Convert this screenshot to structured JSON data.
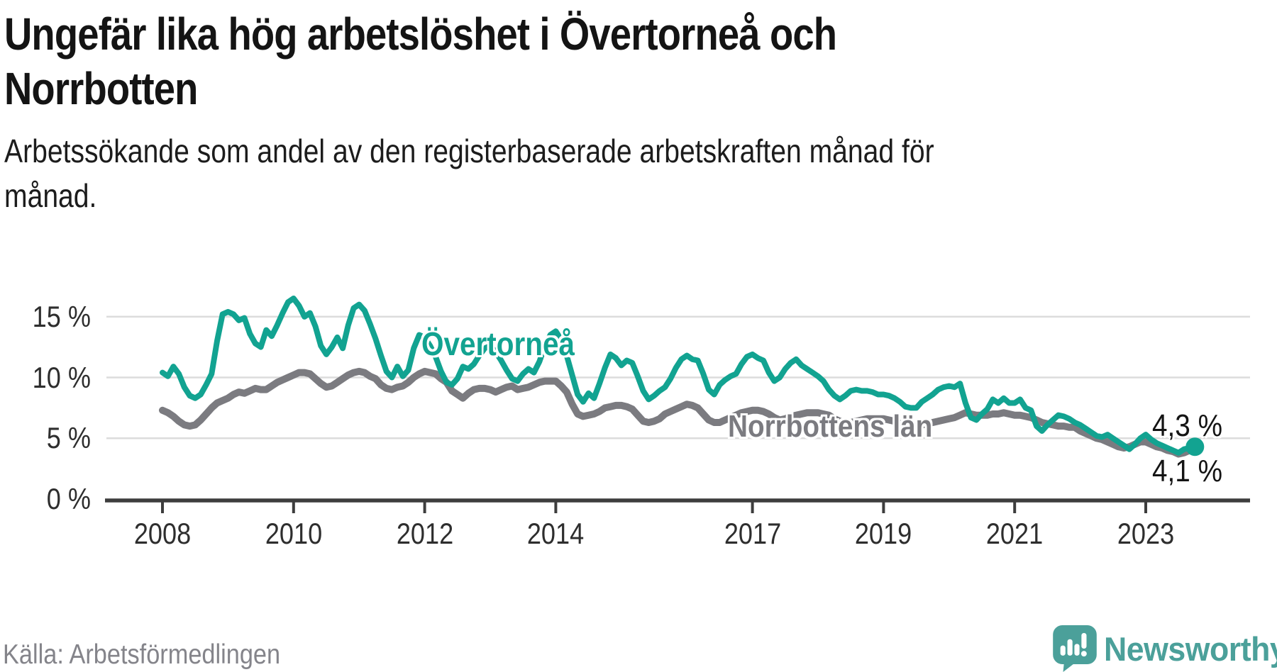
{
  "header": {
    "title": "Ungefär lika hög arbetslöshet i Övertorneå och Norrbotten",
    "subtitle": "Arbetssökande som andel av den registerbaserade arbetskraften månad för månad."
  },
  "footer": {
    "source": "Källa: Arbetsförmedlingen",
    "brand": "Newsworthy",
    "brand_icon": "bar-chart-speech-bubble-icon"
  },
  "colors": {
    "overtornea": "#12a391",
    "norrbotten": "#7b7b80",
    "grid": "#dcdcdc",
    "axis": "#3d3d3d",
    "tick_text": "#2e2e2e",
    "end_label_text": "#141414",
    "brand": "#4ba09a"
  },
  "chart_data": {
    "type": "line",
    "title": "Ungefär lika hög arbetslöshet i Övertorneå och Norrbotten",
    "xlabel": "",
    "ylabel": "Arbetssökande som andel av den registerbaserade arbetskraften",
    "x_unit": "month",
    "x_start_year": 2008,
    "x_end": "2023-10",
    "ylim": [
      0,
      17.5
    ],
    "grid": "horizontal",
    "legend_position": "inline-labels",
    "x_tick_labels": [
      "2008",
      "2010",
      "2012",
      "2014",
      "2017",
      "2019",
      "2021",
      "2023"
    ],
    "x_tick_years": [
      2008,
      2010,
      2012,
      2014,
      2017,
      2019,
      2021,
      2023
    ],
    "y_ticks": [
      {
        "value": 0,
        "label": "0 %"
      },
      {
        "value": 5,
        "label": "5 %"
      },
      {
        "value": 10,
        "label": "10 %"
      },
      {
        "value": 15,
        "label": "15 %"
      }
    ],
    "series": [
      {
        "name": "Övertorneå",
        "end_label": "4,3 %",
        "end_marker": true,
        "values": [
          10.4,
          10.1,
          10.9,
          10.3,
          9.2,
          8.5,
          8.3,
          8.6,
          9.4,
          10.3,
          13.0,
          15.2,
          15.4,
          15.2,
          14.7,
          14.9,
          13.6,
          12.8,
          12.5,
          13.9,
          13.4,
          14.3,
          15.3,
          16.2,
          16.5,
          15.9,
          15.0,
          15.3,
          14.2,
          12.6,
          11.9,
          12.5,
          13.3,
          12.4,
          14.3,
          15.7,
          16.0,
          15.5,
          14.4,
          13.2,
          11.8,
          10.5,
          10.0,
          10.9,
          10.1,
          10.6,
          12.4,
          13.5,
          13.3,
          12.6,
          11.7,
          10.5,
          9.6,
          9.4,
          9.9,
          10.9,
          10.7,
          11.1,
          11.8,
          12.4,
          12.6,
          12.1,
          11.4,
          10.6,
          9.9,
          9.7,
          10.3,
          10.7,
          10.4,
          11.3,
          12.6,
          13.5,
          13.8,
          13.1,
          11.8,
          10.2,
          8.6,
          8.0,
          8.7,
          8.3,
          9.5,
          10.8,
          11.9,
          11.6,
          11.0,
          11.4,
          11.2,
          10.1,
          8.9,
          8.2,
          8.5,
          8.9,
          9.2,
          9.9,
          10.8,
          11.5,
          11.8,
          11.5,
          11.4,
          10.3,
          9.0,
          8.6,
          9.4,
          9.8,
          10.1,
          10.3,
          11.1,
          11.7,
          11.9,
          11.6,
          11.4,
          10.4,
          9.7,
          10.0,
          10.7,
          11.2,
          11.5,
          11.0,
          10.7,
          10.4,
          10.1,
          9.7,
          9.0,
          8.5,
          8.2,
          8.5,
          8.9,
          9.0,
          8.9,
          8.9,
          8.8,
          8.6,
          8.6,
          8.5,
          8.3,
          8.0,
          7.6,
          7.5,
          7.5,
          8.0,
          8.3,
          8.6,
          9.0,
          9.2,
          9.3,
          9.2,
          9.5,
          7.9,
          6.7,
          6.5,
          7.0,
          7.4,
          8.2,
          7.9,
          8.3,
          7.9,
          7.9,
          8.2,
          7.5,
          7.3,
          6.0,
          5.6,
          6.1,
          6.5,
          6.9,
          6.8,
          6.6,
          6.3,
          6.1,
          5.8,
          5.5,
          5.2,
          5.1,
          5.3,
          5.0,
          4.7,
          4.4,
          4.1,
          4.5,
          5.0,
          5.3,
          4.9,
          4.6,
          4.4,
          4.2,
          4.0,
          3.8,
          4.1,
          4.2,
          4.3
        ]
      },
      {
        "name": "Norrbottens län",
        "end_label": "4,1 %",
        "end_marker": false,
        "values": [
          7.3,
          7.1,
          6.8,
          6.4,
          6.1,
          6.0,
          6.1,
          6.5,
          7.0,
          7.5,
          7.9,
          8.1,
          8.3,
          8.6,
          8.8,
          8.7,
          8.9,
          9.1,
          9.0,
          9.0,
          9.3,
          9.6,
          9.8,
          10.0,
          10.2,
          10.4,
          10.4,
          10.3,
          9.9,
          9.5,
          9.2,
          9.3,
          9.6,
          9.9,
          10.2,
          10.4,
          10.5,
          10.4,
          10.1,
          9.9,
          9.4,
          9.1,
          9.0,
          9.2,
          9.3,
          9.6,
          10.0,
          10.3,
          10.5,
          10.4,
          10.3,
          9.9,
          9.6,
          8.9,
          8.6,
          8.3,
          8.7,
          9.0,
          9.1,
          9.1,
          9.0,
          8.8,
          9.0,
          9.2,
          9.3,
          9.0,
          9.1,
          9.2,
          9.4,
          9.6,
          9.7,
          9.7,
          9.7,
          9.3,
          8.8,
          7.8,
          7.0,
          6.8,
          6.9,
          7.0,
          7.2,
          7.5,
          7.6,
          7.7,
          7.7,
          7.6,
          7.4,
          6.9,
          6.4,
          6.3,
          6.4,
          6.6,
          7.0,
          7.2,
          7.4,
          7.6,
          7.8,
          7.7,
          7.5,
          7.0,
          6.5,
          6.3,
          6.3,
          6.5,
          6.7,
          6.9,
          7.1,
          7.2,
          7.3,
          7.3,
          7.2,
          7.0,
          6.7,
          6.5,
          6.6,
          6.8,
          6.9,
          7.0,
          7.1,
          7.1,
          7.1,
          7.0,
          6.9,
          6.6,
          6.4,
          6.2,
          6.3,
          6.4,
          6.5,
          6.6,
          6.6,
          6.6,
          6.6,
          6.5,
          6.4,
          6.2,
          6.0,
          5.9,
          6.0,
          6.1,
          6.2,
          6.3,
          6.4,
          6.5,
          6.6,
          6.7,
          6.9,
          7.1,
          7.0,
          6.9,
          6.9,
          6.9,
          7.0,
          7.0,
          7.1,
          7.0,
          6.9,
          6.9,
          6.8,
          6.7,
          6.5,
          6.3,
          6.2,
          6.1,
          6.0,
          6.0,
          5.9,
          5.9,
          5.6,
          5.4,
          5.2,
          5.0,
          4.9,
          4.7,
          4.5,
          4.3,
          4.2,
          4.3,
          4.5,
          4.7,
          4.7,
          4.5,
          4.3,
          4.2,
          4.0,
          3.9,
          3.7,
          3.8,
          4.0,
          4.1
        ]
      }
    ]
  }
}
